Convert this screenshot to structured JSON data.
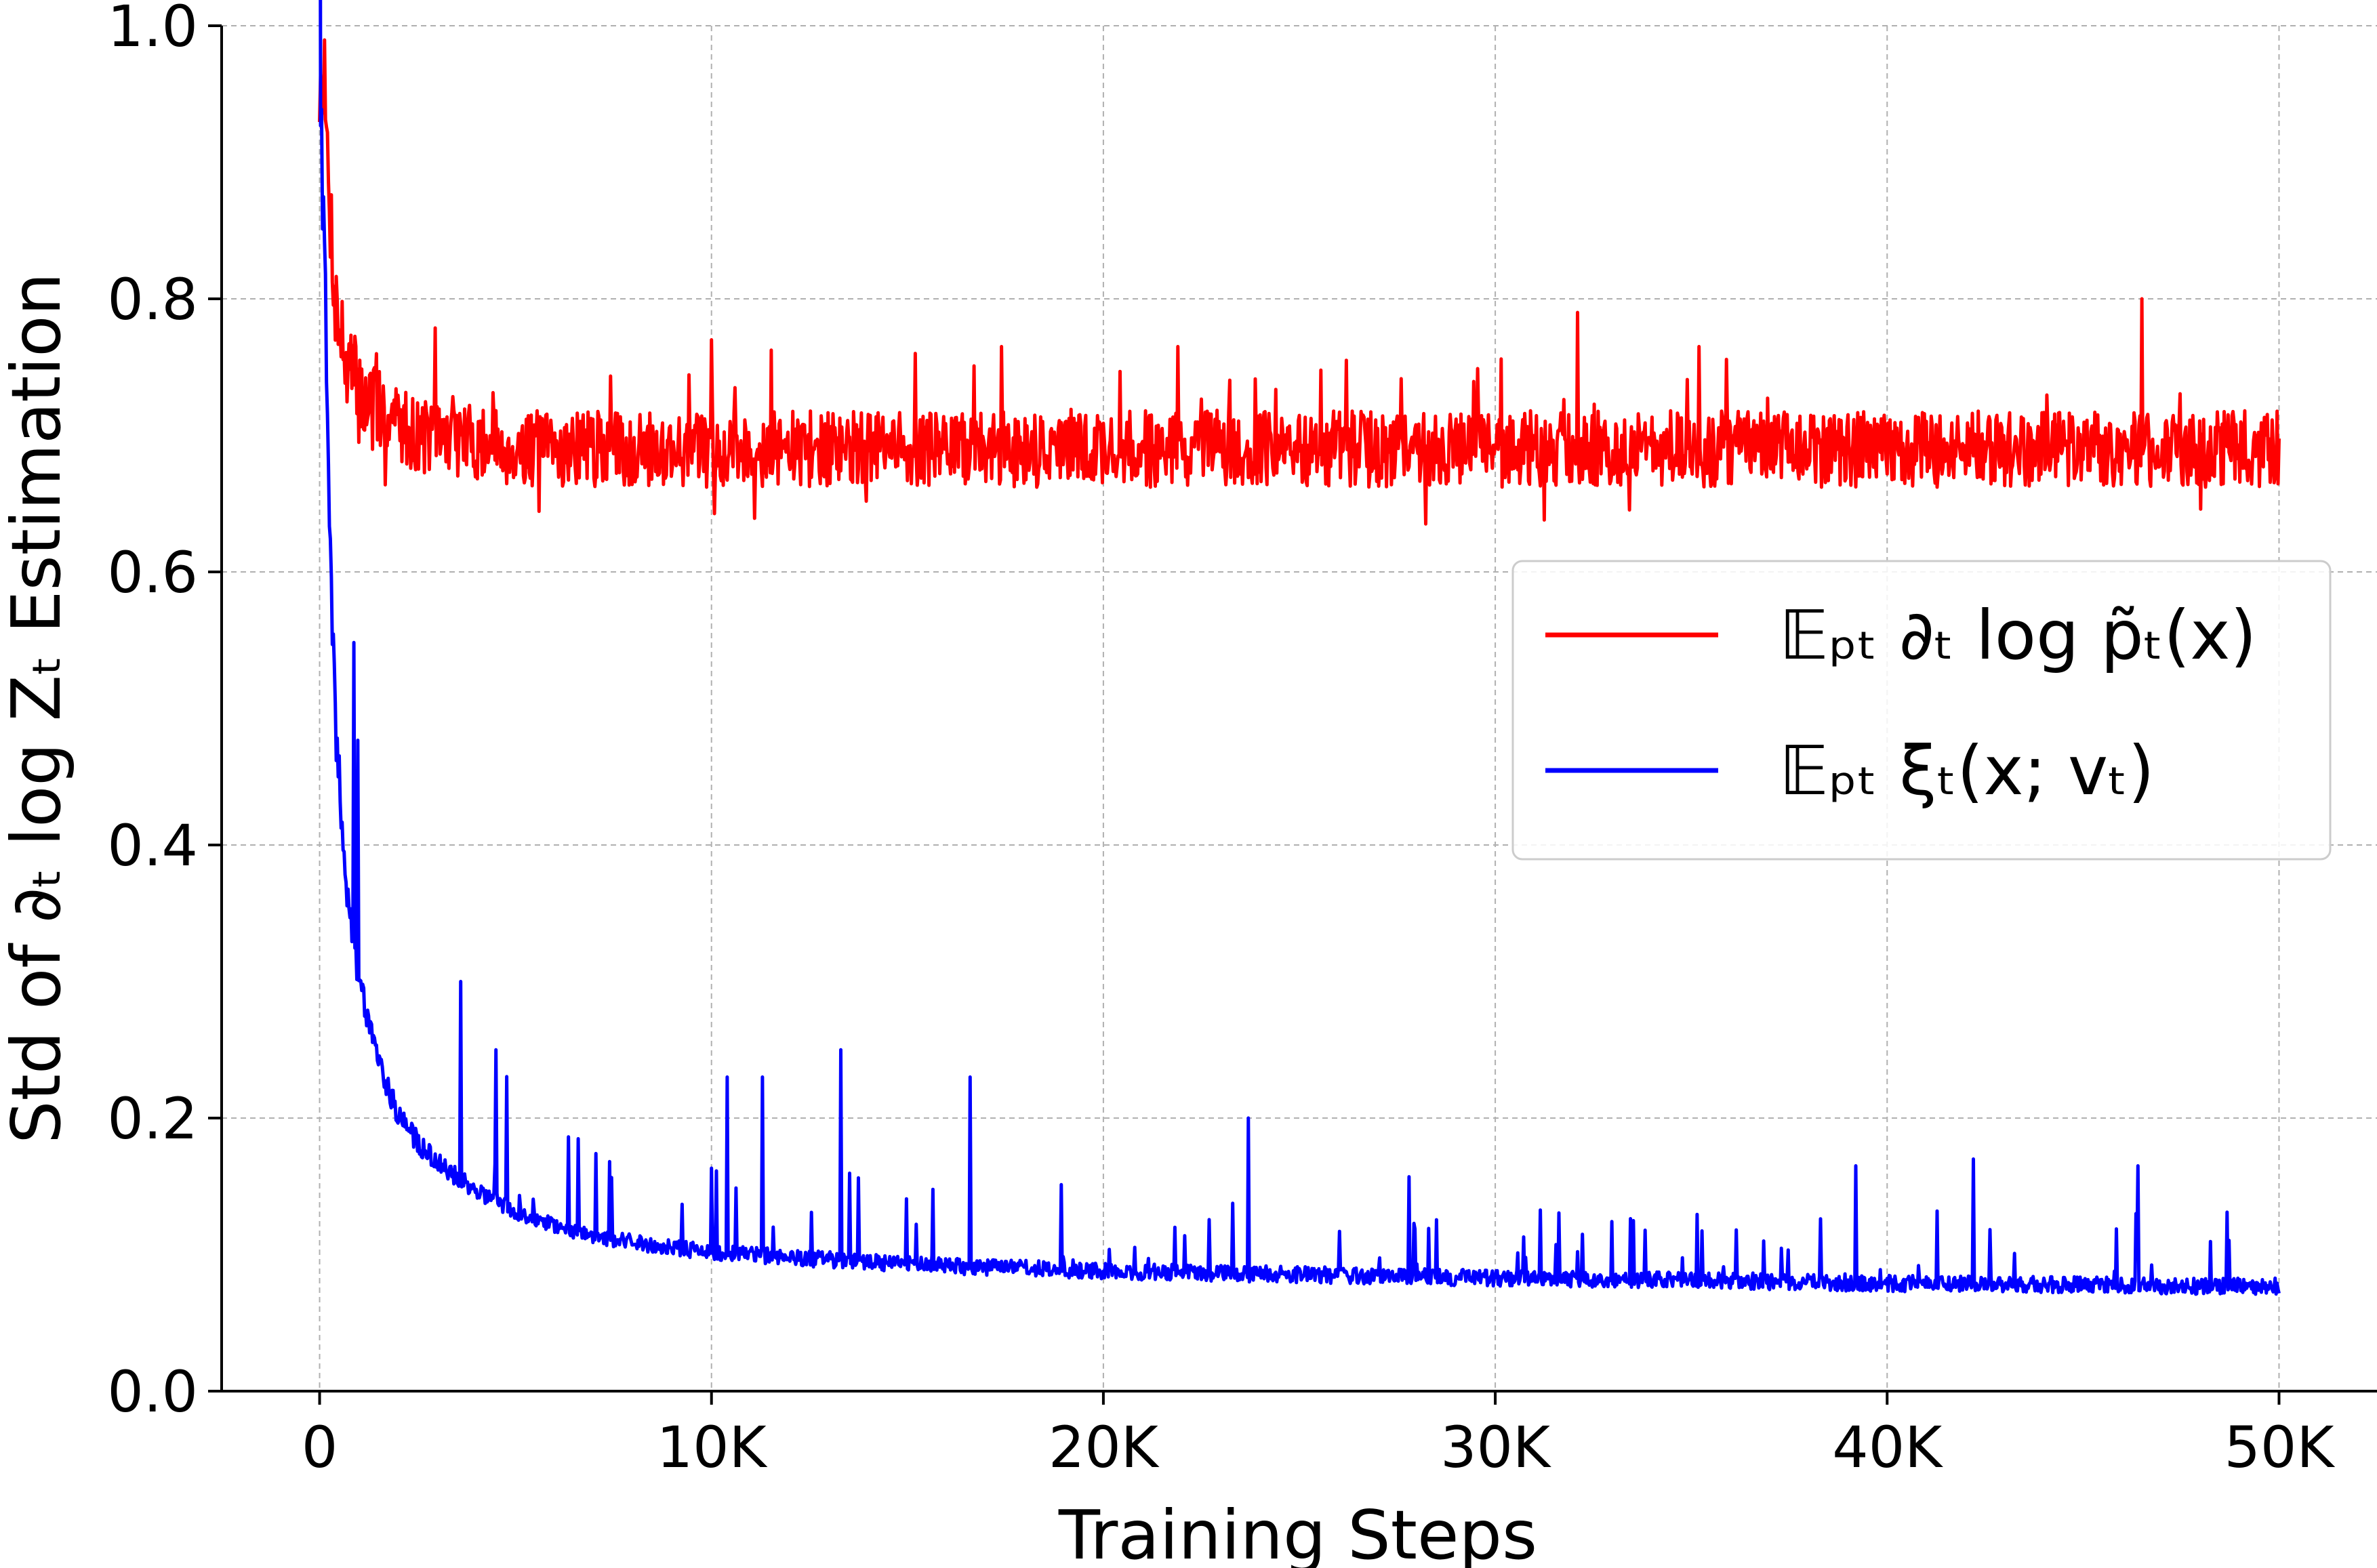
{
  "chart_data": {
    "type": "line",
    "title": "",
    "xlabel": "Training Steps",
    "ylabel": "Std of ∂ₜ log Zₜ Estimation",
    "xlim": [
      -2500,
      52500
    ],
    "ylim": [
      0.0,
      1.0
    ],
    "grid": true,
    "legend_position": "center-right",
    "x_ticks": [
      0,
      10000,
      20000,
      30000,
      40000,
      50000
    ],
    "x_tick_labels": [
      "0",
      "10K",
      "20K",
      "30K",
      "40K",
      "50K"
    ],
    "y_ticks": [
      0.0,
      0.2,
      0.4,
      0.6,
      0.8,
      1.0
    ],
    "y_tick_labels": [
      "0.0",
      "0.2",
      "0.4",
      "0.6",
      "0.8",
      "1.0"
    ],
    "x": [
      0,
      100,
      200,
      300,
      400,
      500,
      700,
      1000,
      1500,
      2000,
      2500,
      3000,
      4000,
      5000,
      6000,
      7000,
      8000,
      9000,
      10000,
      12000,
      14000,
      16000,
      18000,
      20000,
      22000,
      24000,
      26000,
      28000,
      30000,
      32000,
      34000,
      36000,
      38000,
      40000,
      42000,
      44000,
      46000,
      48000,
      50000
    ],
    "series": [
      {
        "name": "𝔼ₚₜ ∂ₜ log p̃ₜ(x)",
        "color": "#ff0000",
        "values": [
          0.95,
          0.97,
          0.9,
          0.85,
          0.8,
          0.78,
          0.75,
          0.73,
          0.72,
          0.71,
          0.7,
          0.7,
          0.695,
          0.69,
          0.69,
          0.69,
          0.69,
          0.69,
          0.69,
          0.69,
          0.69,
          0.69,
          0.69,
          0.69,
          0.69,
          0.69,
          0.69,
          0.69,
          0.69,
          0.69,
          0.69,
          0.69,
          0.69,
          0.69,
          0.69,
          0.69,
          0.69,
          0.69,
          0.69
        ],
        "peaks": [
          {
            "x": 10000,
            "y": 0.77
          },
          {
            "x": 15200,
            "y": 0.76
          },
          {
            "x": 17400,
            "y": 0.765
          },
          {
            "x": 21900,
            "y": 0.765
          },
          {
            "x": 26200,
            "y": 0.755
          },
          {
            "x": 32100,
            "y": 0.79
          },
          {
            "x": 35200,
            "y": 0.765
          },
          {
            "x": 46500,
            "y": 0.8
          }
        ]
      },
      {
        "name": "𝔼ₚₜ ξₜ(x; vₜ)",
        "color": "#0000ff",
        "values": [
          0.95,
          0.85,
          0.7,
          0.58,
          0.48,
          0.44,
          0.36,
          0.3,
          0.24,
          0.2,
          0.18,
          0.165,
          0.145,
          0.13,
          0.12,
          0.112,
          0.107,
          0.103,
          0.1,
          0.096,
          0.093,
          0.09,
          0.088,
          0.086,
          0.085,
          0.084,
          0.083,
          0.082,
          0.081,
          0.08,
          0.08,
          0.079,
          0.078,
          0.077,
          0.077,
          0.076,
          0.076,
          0.075,
          0.075
        ],
        "peaks": [
          {
            "x": 3600,
            "y": 0.3
          },
          {
            "x": 4500,
            "y": 0.25
          },
          {
            "x": 10400,
            "y": 0.23
          },
          {
            "x": 11300,
            "y": 0.23
          },
          {
            "x": 13300,
            "y": 0.25
          },
          {
            "x": 16600,
            "y": 0.23
          },
          {
            "x": 23700,
            "y": 0.2
          },
          {
            "x": 27800,
            "y": 0.157
          },
          {
            "x": 39200,
            "y": 0.165
          },
          {
            "x": 42200,
            "y": 0.17
          },
          {
            "x": 46400,
            "y": 0.165
          }
        ]
      }
    ]
  }
}
